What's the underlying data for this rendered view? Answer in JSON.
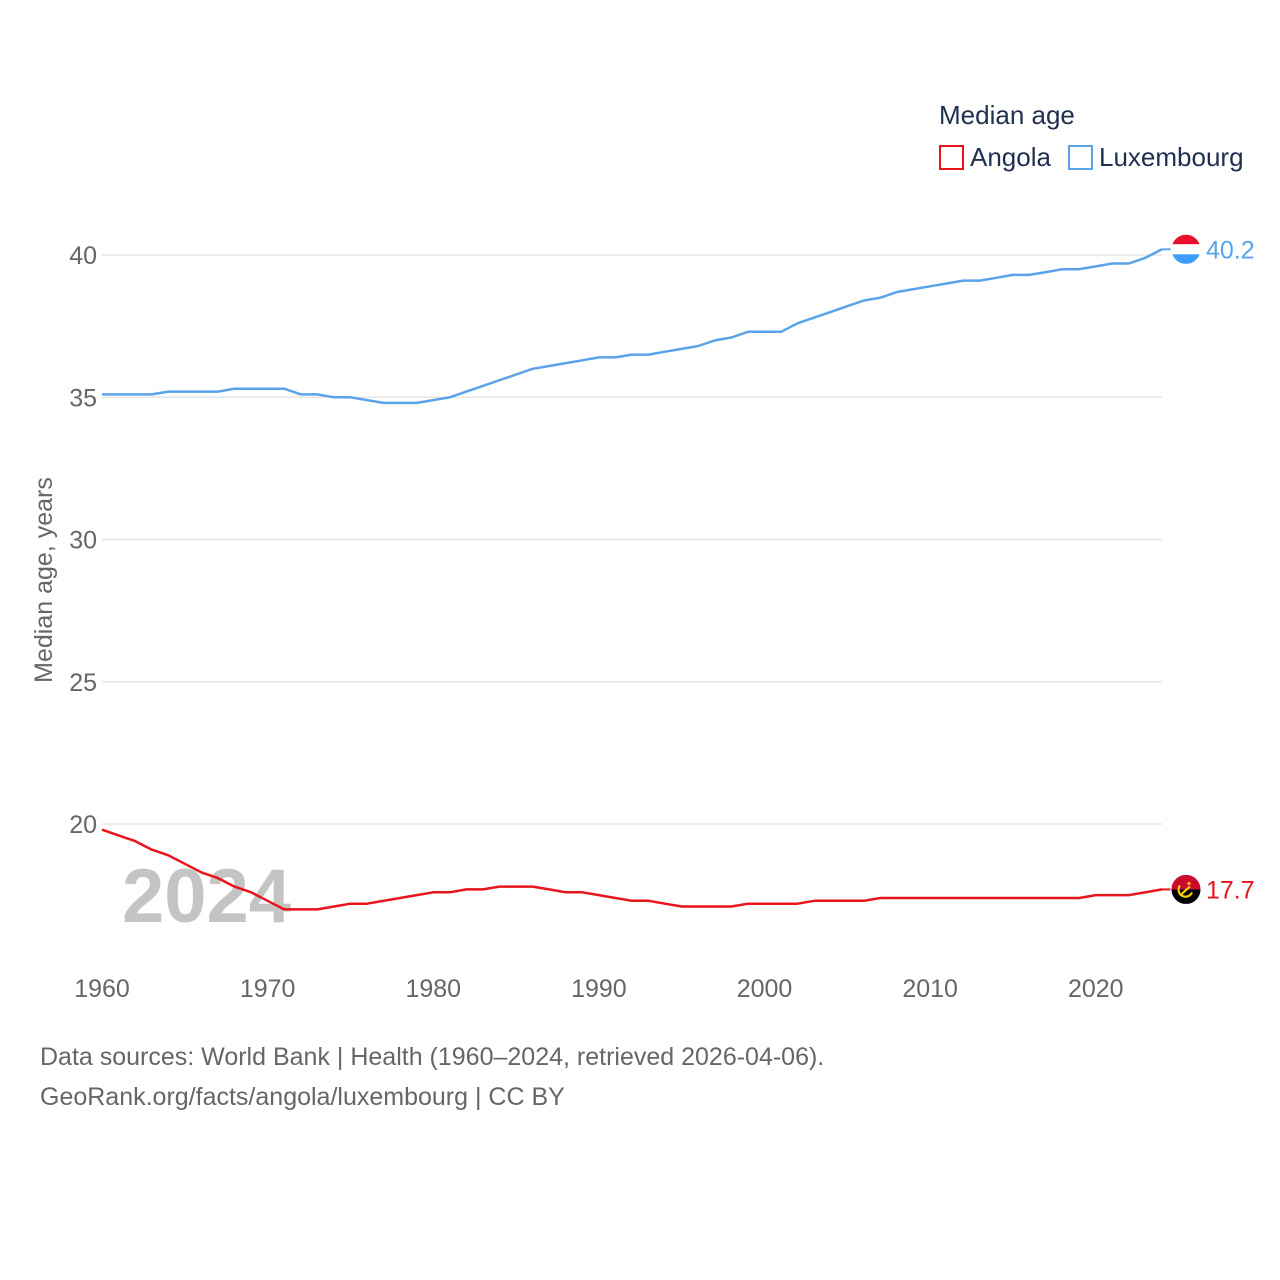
{
  "chart_data": {
    "type": "line",
    "legend_title": "Median age",
    "year_label": "2024",
    "ylabel": "Median age, years",
    "xlim": [
      1960,
      2024
    ],
    "ylim": [
      15.5,
      42
    ],
    "x_ticks": [
      1960,
      1970,
      1980,
      1990,
      2000,
      2010,
      2020
    ],
    "y_ticks": [
      20,
      25,
      30,
      35,
      40
    ],
    "x": [
      1960,
      1961,
      1962,
      1963,
      1964,
      1965,
      1966,
      1967,
      1968,
      1969,
      1970,
      1971,
      1972,
      1973,
      1974,
      1975,
      1976,
      1977,
      1978,
      1979,
      1980,
      1981,
      1982,
      1983,
      1984,
      1985,
      1986,
      1987,
      1988,
      1989,
      1990,
      1991,
      1992,
      1993,
      1994,
      1995,
      1996,
      1997,
      1998,
      1999,
      2000,
      2001,
      2002,
      2003,
      2004,
      2005,
      2006,
      2007,
      2008,
      2009,
      2010,
      2011,
      2012,
      2013,
      2014,
      2015,
      2016,
      2017,
      2018,
      2019,
      2020,
      2021,
      2022,
      2023,
      2024
    ],
    "series": [
      {
        "name": "Angola",
        "color": "#e8141c",
        "end_label": "17.7",
        "flag_icon": "angola-flag-icon",
        "values": [
          19.8,
          19.6,
          19.4,
          19.1,
          18.9,
          18.6,
          18.3,
          18.1,
          17.8,
          17.6,
          17.3,
          17.0,
          17.0,
          17.0,
          17.1,
          17.2,
          17.2,
          17.3,
          17.4,
          17.5,
          17.6,
          17.6,
          17.7,
          17.7,
          17.8,
          17.8,
          17.8,
          17.7,
          17.6,
          17.6,
          17.5,
          17.4,
          17.3,
          17.3,
          17.2,
          17.1,
          17.1,
          17.1,
          17.1,
          17.2,
          17.2,
          17.2,
          17.2,
          17.3,
          17.3,
          17.3,
          17.3,
          17.4,
          17.4,
          17.4,
          17.4,
          17.4,
          17.4,
          17.4,
          17.4,
          17.4,
          17.4,
          17.4,
          17.4,
          17.4,
          17.5,
          17.5,
          17.5,
          17.6,
          17.7
        ]
      },
      {
        "name": "Luxembourg",
        "color": "#5aa3e8",
        "end_label": "40.2",
        "flag_icon": "luxembourg-flag-icon",
        "values": [
          35.1,
          35.1,
          35.1,
          35.1,
          35.2,
          35.2,
          35.2,
          35.2,
          35.3,
          35.3,
          35.3,
          35.3,
          35.1,
          35.1,
          35.0,
          35.0,
          34.9,
          34.8,
          34.8,
          34.8,
          34.9,
          35.0,
          35.2,
          35.4,
          35.6,
          35.8,
          36.0,
          36.1,
          36.2,
          36.3,
          36.4,
          36.4,
          36.5,
          36.5,
          36.6,
          36.7,
          36.8,
          37.0,
          37.1,
          37.3,
          37.3,
          37.3,
          37.6,
          37.8,
          38.0,
          38.2,
          38.4,
          38.5,
          38.7,
          38.8,
          38.9,
          39.0,
          39.1,
          39.1,
          39.2,
          39.3,
          39.3,
          39.4,
          39.5,
          39.5,
          39.6,
          39.7,
          39.7,
          39.9,
          40.2
        ]
      }
    ]
  },
  "footer": {
    "source_line": "Data sources: World Bank | Health (1960–2024, retrieved 2026-04-06).",
    "url_line": "GeoRank.org/facts/angola/luxembourg | CC BY"
  }
}
